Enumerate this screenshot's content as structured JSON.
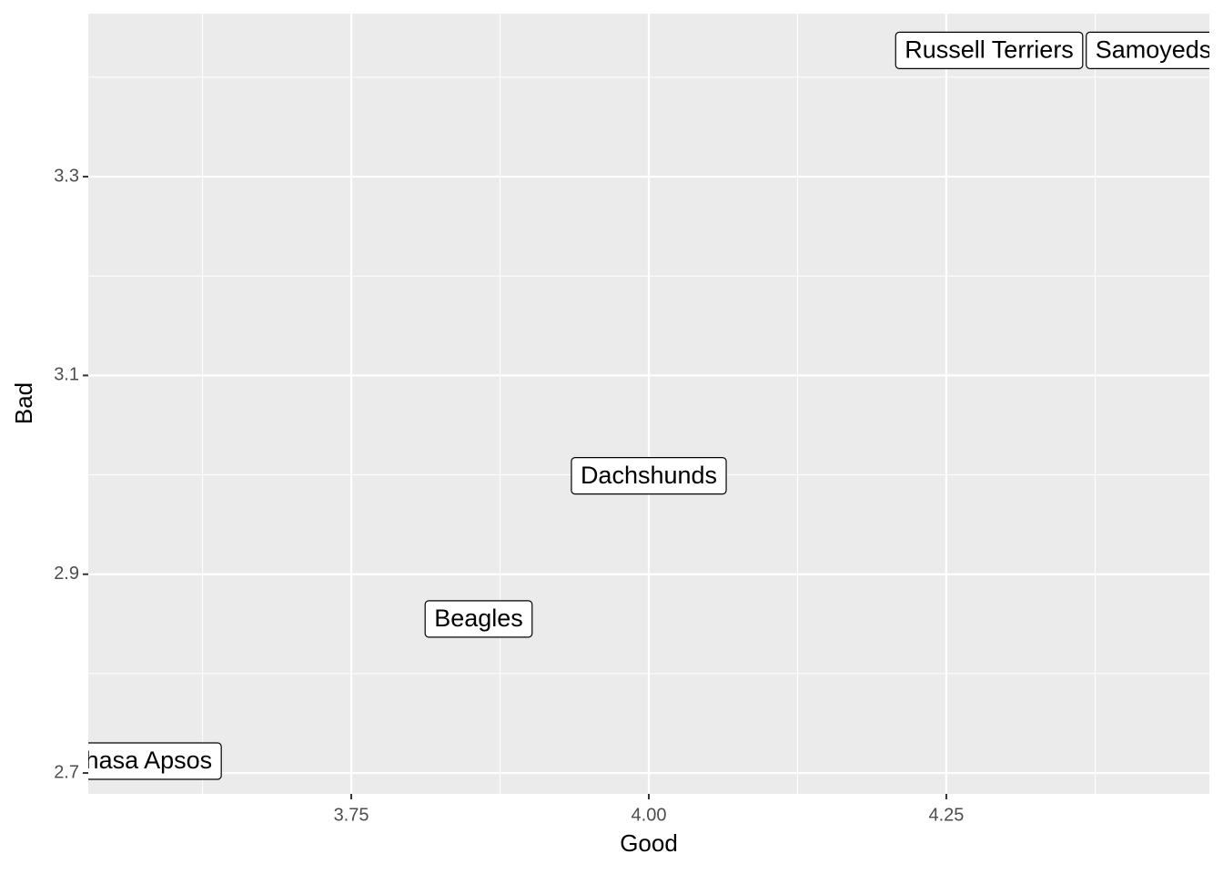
{
  "chart_data": {
    "type": "scatter",
    "x_label": "Good",
    "y_label": "Bad",
    "labels": [
      "Lhasa Apsos",
      "Beagles",
      "Dachshunds",
      "Russell Terriers",
      "Samoyeds"
    ],
    "x": [
      3.574,
      3.857,
      4.0,
      4.286,
      4.424
    ],
    "values": [
      2.712,
      2.855,
      2.999,
      3.427,
      3.427
    ],
    "xlim": [
      3.529,
      4.471
    ],
    "ylim": [
      2.679,
      3.464
    ],
    "xticks": [
      3.75,
      {
        "value": 4,
        "label": "4.00"
      },
      4.25
    ],
    "yticks": [
      2.7,
      2.9,
      3.1,
      3.3
    ],
    "grid": true
  }
}
